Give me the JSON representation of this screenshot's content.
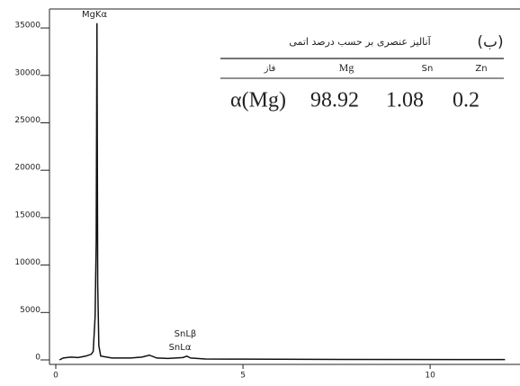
{
  "chart_data": {
    "type": "line",
    "x": [
      0.1,
      0.2,
      0.4,
      0.6,
      0.8,
      0.95,
      1.0,
      1.05,
      1.08,
      1.1,
      1.12,
      1.15,
      1.2,
      1.5,
      2.0,
      2.3,
      2.5,
      2.7,
      3.0,
      3.4,
      3.5,
      3.6,
      4.0,
      5,
      8,
      12
    ],
    "series": [
      {
        "color": "#111111",
        "values": [
          0,
          200,
          300,
          250,
          400,
          600,
          900,
          4500,
          12500,
          35500,
          8000,
          1500,
          400,
          200,
          200,
          300,
          500,
          200,
          150,
          250,
          400,
          200,
          100,
          80,
          50,
          30
        ]
      }
    ],
    "xlim": [
      0,
      12.4
    ],
    "ylim": [
      0,
      37000
    ],
    "xticks": [
      0,
      5,
      10
    ],
    "yticks": [
      0,
      5000,
      10000,
      15000,
      20000,
      25000,
      30000,
      35000
    ],
    "annotations": [
      "MgKα",
      "SnLβ",
      "SnLα"
    ]
  },
  "inset": {
    "label": "(ب)",
    "title": "آنالیز عنصری بر حسب درصد اتمی",
    "header": [
      "فاز",
      "Mg",
      "Sn",
      "Zn"
    ],
    "row": [
      "α(Mg)",
      "98.92",
      "1.08",
      "0.2"
    ]
  }
}
